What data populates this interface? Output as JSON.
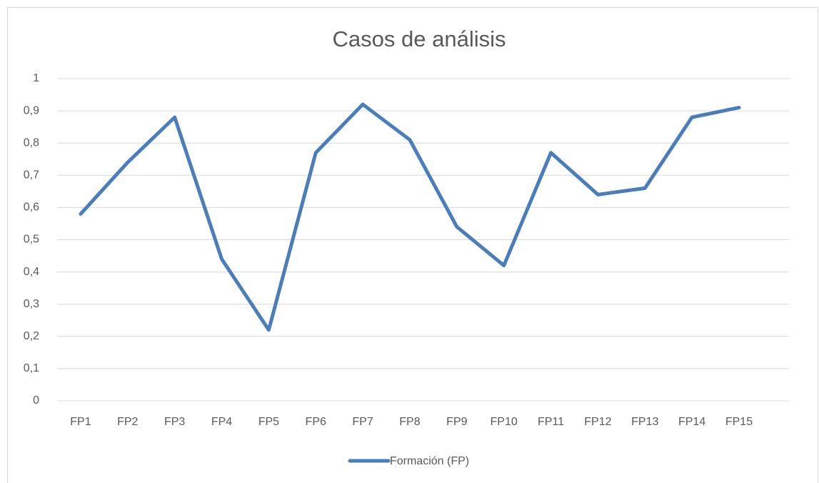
{
  "chart_data": {
    "type": "line",
    "title": "Casos de análisis",
    "categories": [
      "FP1",
      "FP2",
      "FP3",
      "FP4",
      "FP5",
      "FP6",
      "FP7",
      "FP8",
      "FP9",
      "FP10",
      "FP11",
      "FP12",
      "FP13",
      "FP14",
      "FP15"
    ],
    "series": [
      {
        "name": "Formación (FP)",
        "color": "#4a7ebb",
        "values": [
          0.58,
          0.74,
          0.88,
          0.44,
          0.22,
          0.77,
          0.92,
          0.81,
          0.54,
          0.42,
          0.77,
          0.64,
          0.66,
          0.88,
          0.91
        ]
      }
    ],
    "ylim": [
      0,
      1
    ],
    "yticks": [
      0,
      {
        "value": 0.1,
        "label": "0,1"
      },
      {
        "value": 0.2,
        "label": "0,2"
      },
      {
        "value": 0.3,
        "label": "0,3"
      },
      {
        "value": 0.4,
        "label": "0,4"
      },
      {
        "value": 0.5,
        "label": "0,5"
      },
      {
        "value": 0.6,
        "label": "0,6"
      },
      {
        "value": 0.7,
        "label": "0,7"
      },
      {
        "value": 0.8,
        "label": "0,8"
      },
      {
        "value": 0.9,
        "label": "0,9"
      },
      1
    ],
    "grid": true,
    "legend": "bottom"
  }
}
